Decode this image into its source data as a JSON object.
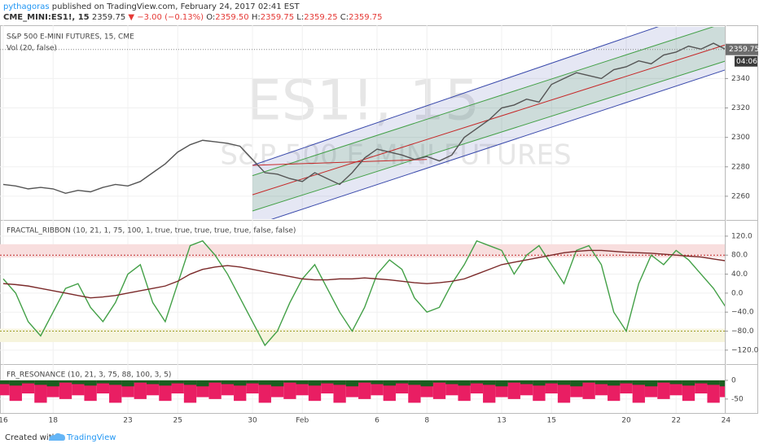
{
  "header": {
    "user": "pythagoras",
    "published": "published on TradingView.com, February 24, 2017 02:41 EST",
    "symbol": "CME_MINI:ES1!, 15",
    "last": "2359.75",
    "change": "▼ −3.00 (−0.13%)",
    "o_label": "O:",
    "o": "2359.50",
    "h_label": "H:",
    "h": "2359.75",
    "l_label": "L:",
    "l": "2359.25",
    "c_label": "C:",
    "c": "2359.75"
  },
  "watermark": {
    "symbol": "ES1!, 15",
    "name": "S&P 500 E-MINI FUTURES"
  },
  "footer": {
    "created": "Created with",
    "brand": "TradingView"
  },
  "chart_data": [
    {
      "type": "line",
      "title": "S&P 500 E-MINI FUTURES, 15, CME",
      "subtitle": "Vol (20, false)",
      "categories": [
        "16",
        null,
        null,
        null,
        "18",
        null,
        null,
        null,
        null,
        null,
        "23",
        null,
        null,
        null,
        "25",
        null,
        null,
        null,
        null,
        null,
        "30",
        null,
        null,
        null,
        "Feb",
        null,
        null,
        null,
        null,
        null,
        "6",
        null,
        null,
        null,
        "8",
        null,
        null,
        null,
        null,
        null,
        "13",
        null,
        null,
        null,
        "15",
        null,
        null,
        null,
        null,
        null,
        "20",
        null,
        null,
        null,
        "22",
        null,
        null,
        null,
        "24"
      ],
      "series": [
        {
          "color": "#555555",
          "values": [
            2268,
            2267,
            2265,
            2266,
            2265,
            2262,
            2264,
            2263,
            2266,
            2268,
            2267,
            2270,
            2276,
            2282,
            2290,
            2295,
            2298,
            2297,
            2296,
            2294,
            2285,
            2276,
            2275,
            2272,
            2270,
            2276,
            2272,
            2268,
            2276,
            2286,
            2292,
            2290,
            2288,
            2285,
            2287,
            2284,
            2288,
            2300,
            2306,
            2312,
            2320,
            2322,
            2326,
            2324,
            2336,
            2340,
            2344,
            2342,
            2340,
            2346,
            2348,
            2352,
            2350,
            2356,
            2358,
            2362,
            2360,
            2364,
            2359.75
          ]
        }
      ],
      "ylim": [
        2245,
        2374
      ],
      "yticks": [
        2260,
        2280,
        2300,
        2320,
        2340
      ],
      "channels": [
        {
          "color": "#3949ab",
          "x": [
            20,
            58
          ],
          "values": [
            2281,
            2391
          ]
        },
        {
          "color": "#43a047",
          "x": [
            20,
            58
          ],
          "values": [
            2274,
            2378
          ]
        },
        {
          "color": "#c62828",
          "x": [
            20,
            58
          ],
          "values": [
            2261,
            2363
          ]
        },
        {
          "color": "#43a047",
          "x": [
            20,
            58
          ],
          "values": [
            2250,
            2352
          ]
        },
        {
          "color": "#3949ab",
          "x": [
            20,
            58
          ],
          "values": [
            2240,
            2346
          ]
        }
      ],
      "trendlines": [
        {
          "color": "#c62828",
          "x": [
            20,
            34
          ],
          "values": [
            2281,
            2285
          ]
        }
      ],
      "last_price": {
        "value": 2359.75,
        "label": "2359.75"
      },
      "time_left": "04:06"
    },
    {
      "type": "line",
      "title": "FRACTAL_RIBBON (10, 21, 1, 75, 100, 1, true, true, true, true, true, false, false)",
      "series": [
        {
          "color": "#43a047",
          "values": [
            30,
            0,
            -60,
            -90,
            -40,
            10,
            20,
            -30,
            -60,
            -20,
            40,
            60,
            -20,
            -60,
            20,
            100,
            110,
            80,
            40,
            -10,
            -60,
            -110,
            -80,
            -20,
            30,
            60,
            10,
            -40,
            -80,
            -30,
            40,
            70,
            50,
            -10,
            -40,
            -30,
            20,
            60,
            110,
            100,
            90,
            40,
            80,
            100,
            60,
            20,
            90,
            100,
            60,
            -40,
            -80,
            20,
            80,
            60,
            90,
            70,
            40,
            10,
            -30
          ]
        },
        {
          "color": "#7b2a2a",
          "values": [
            20,
            18,
            15,
            10,
            5,
            0,
            -5,
            -10,
            -8,
            -5,
            0,
            5,
            10,
            15,
            25,
            40,
            50,
            55,
            58,
            55,
            50,
            45,
            40,
            35,
            30,
            28,
            28,
            30,
            30,
            32,
            30,
            28,
            25,
            22,
            20,
            22,
            25,
            30,
            40,
            50,
            60,
            65,
            70,
            75,
            80,
            85,
            88,
            90,
            90,
            88,
            86,
            85,
            84,
            82,
            80,
            78,
            76,
            72,
            68
          ]
        }
      ],
      "ylim": [
        -146,
        149
      ],
      "yticks": [
        {
          "value": 120,
          "label": "120.0"
        },
        {
          "value": 80,
          "label": "80.0"
        },
        {
          "value": 40,
          "label": "40.0"
        },
        {
          "value": 0,
          "label": "0.0"
        },
        {
          "value": -40,
          "label": "−40.0"
        },
        {
          "value": -80,
          "label": "−80.0"
        },
        {
          "value": -120,
          "label": "−120.0"
        }
      ],
      "bands": [
        {
          "from": 75,
          "to": 103,
          "color": "#f8dede"
        },
        {
          "from": -103,
          "to": -75,
          "color": "#f6f4dc"
        }
      ],
      "hlines": [
        {
          "value": 80,
          "color": "#c62828"
        },
        {
          "value": -80,
          "color": "#9e9d24"
        }
      ]
    },
    {
      "type": "bar",
      "title": "FR_RESONANCE (10, 21, 3, 75, 88, 100, 3, 5)",
      "series": [
        {
          "color": "#e91e63",
          "values": [
            -40,
            -55,
            -35,
            -60,
            -45,
            -50,
            -40,
            -55,
            -35,
            -60,
            -45,
            -50,
            -40,
            -55,
            -35,
            -60,
            -45,
            -50,
            -40,
            -55,
            -35,
            -60,
            -45,
            -50,
            -40,
            -55,
            -35,
            -60,
            -45,
            -50,
            -40,
            -55,
            -35,
            -60,
            -45,
            -50,
            -40,
            -55,
            -35,
            -60,
            -45,
            -50,
            -40,
            -55,
            -35,
            -60,
            -45,
            -50,
            -40,
            -55,
            -35,
            -60,
            -45,
            -50,
            -40,
            -55,
            -35,
            -60,
            -45
          ]
        },
        {
          "color": "#1b5e20",
          "values": [
            -10,
            -14,
            -8,
            -12,
            -16,
            -6,
            -10,
            -14,
            -8,
            -12,
            -16,
            -6,
            -10,
            -14,
            -8,
            -12,
            -16,
            -6,
            -10,
            -14,
            -8,
            -12,
            -16,
            -6,
            -10,
            -14,
            -8,
            -12,
            -16,
            -6,
            -10,
            -14,
            -8,
            -12,
            -16,
            -6,
            -10,
            -14,
            -8,
            -12,
            -16,
            -6,
            -10,
            -14,
            -8,
            -12,
            -16,
            -6,
            -10,
            -14,
            -8,
            -12,
            -16,
            -6,
            -10,
            -14,
            -8,
            -12,
            -16
          ]
        }
      ],
      "ylim": [
        -83,
        37
      ],
      "yticks": [
        0,
        -50
      ]
    }
  ]
}
